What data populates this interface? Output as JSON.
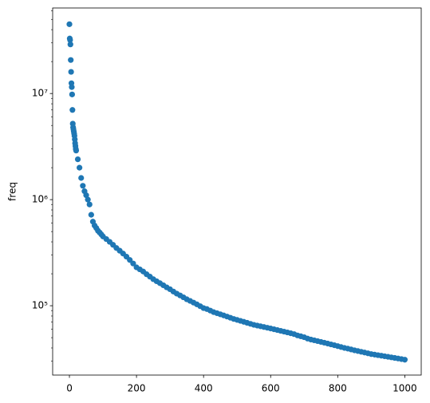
{
  "chart_data": {
    "type": "scatter",
    "ylabel": "freq",
    "log_y": true,
    "color": "#1f77b4",
    "x": [
      0,
      1,
      2,
      3,
      4,
      5,
      6,
      7,
      8,
      9,
      10,
      11,
      12,
      13,
      14,
      15,
      16,
      17,
      18,
      19,
      20,
      25,
      30,
      35,
      40,
      45,
      50,
      55,
      60,
      65,
      70,
      75,
      80,
      85,
      90,
      95,
      100,
      110,
      120,
      130,
      140,
      150,
      160,
      170,
      180,
      190,
      200,
      210,
      220,
      230,
      240,
      250,
      260,
      270,
      280,
      290,
      300,
      310,
      320,
      330,
      340,
      350,
      360,
      370,
      380,
      390,
      400,
      410,
      420,
      430,
      440,
      450,
      460,
      470,
      480,
      490,
      500,
      510,
      520,
      530,
      540,
      550,
      560,
      570,
      580,
      590,
      600,
      610,
      620,
      630,
      640,
      650,
      660,
      670,
      680,
      690,
      700,
      710,
      720,
      730,
      740,
      750,
      760,
      770,
      780,
      790,
      800,
      810,
      820,
      830,
      840,
      850,
      860,
      870,
      880,
      890,
      900,
      910,
      920,
      930,
      940,
      950,
      960,
      970,
      980,
      990,
      1000
    ],
    "values": [
      45000000,
      33000000,
      32000000,
      29000000,
      20700000,
      16000000,
      12500000,
      11500000,
      9800000,
      7000000,
      5200000,
      4800000,
      4600000,
      4400000,
      4200000,
      4000000,
      3700000,
      3400000,
      3200000,
      3000000,
      2900000,
      2400000,
      2000000,
      1600000,
      1350000,
      1200000,
      1100000,
      1000000,
      900000,
      720000,
      620000,
      570000,
      540000,
      510000,
      490000,
      470000,
      450000,
      425000,
      400000,
      375000,
      350000,
      330000,
      310000,
      290000,
      270000,
      250000,
      230000,
      220000,
      210000,
      198000,
      188000,
      178000,
      170000,
      163000,
      156000,
      149000,
      143000,
      136000,
      130000,
      125000,
      120000,
      115000,
      111000,
      107000,
      103000,
      99000,
      95000,
      93000,
      90000,
      87000,
      85000,
      83000,
      81000,
      79000,
      77000,
      75000,
      73500,
      72000,
      70500,
      69000,
      67500,
      66000,
      65000,
      64000,
      63000,
      62000,
      61000,
      60000,
      59000,
      58000,
      57000,
      56000,
      55000,
      54000,
      52500,
      51500,
      50500,
      49000,
      48000,
      47200,
      46400,
      45600,
      44800,
      44000,
      43200,
      42400,
      41600,
      40800,
      40000,
      39400,
      38700,
      38000,
      37400,
      36800,
      36200,
      35600,
      35000,
      34600,
      34200,
      33800,
      33400,
      33000,
      32600,
      32200,
      31800,
      31400,
      31000
    ],
    "xlim": [
      -50,
      1049
    ],
    "ylim": [
      22200,
      64000000
    ],
    "xticks": [
      0,
      200,
      400,
      600,
      800,
      1000
    ],
    "yticks": [
      {
        "value": 100000,
        "label": "10⁵"
      },
      {
        "value": 1000000,
        "label": "10⁶"
      },
      {
        "value": 10000000,
        "label": "10⁷"
      }
    ],
    "yminorticks": [
      30000,
      40000,
      50000,
      60000,
      70000,
      80000,
      90000,
      200000,
      300000,
      400000,
      500000,
      600000,
      700000,
      800000,
      900000,
      2000000,
      3000000,
      4000000,
      5000000,
      6000000,
      7000000,
      8000000,
      9000000,
      20000000,
      30000000,
      40000000,
      50000000,
      60000000
    ]
  }
}
